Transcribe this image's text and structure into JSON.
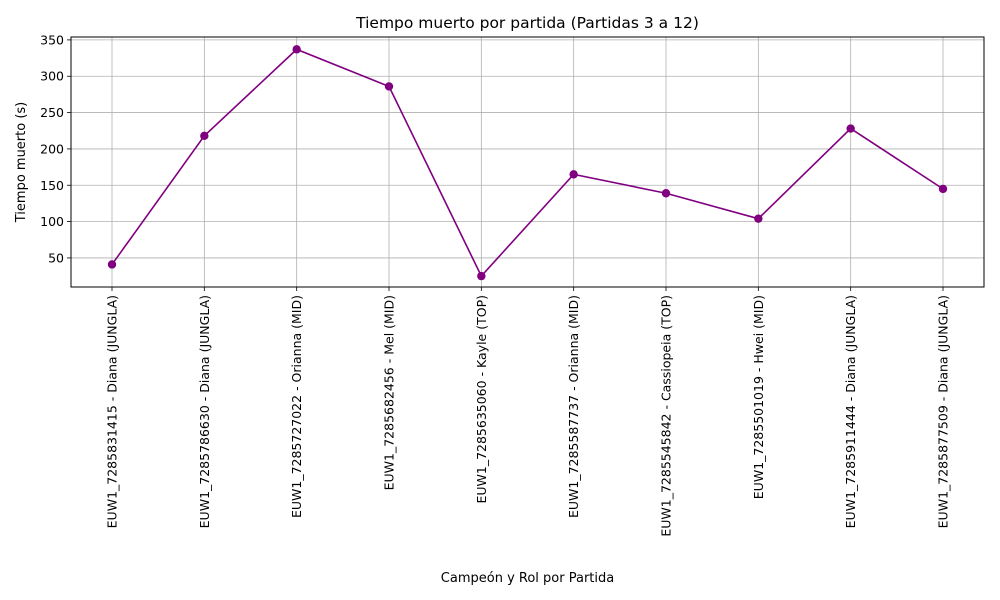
{
  "chart_data": {
    "type": "line",
    "title": "Tiempo muerto por partida (Partidas 3 a 12)",
    "xlabel": "Campeón y Rol por Partida",
    "ylabel": "Tiempo muerto (s)",
    "categories": [
      "EUW1_7285831415 - Diana (JUNGLA)",
      "EUW1_7285786630 - Diana (JUNGLA)",
      "EUW1_7285727022 - Orianna (MID)",
      "EUW1_7285682456 - Mel (MID)",
      "EUW1_7285635060 - Kayle (TOP)",
      "EUW1_7285587737 - Orianna (MID)",
      "EUW1_7285545842 - Cassiopeia (TOP)",
      "EUW1_7285501019 - Hwei (MID)",
      "EUW1_7285911444 - Diana (JUNGLA)",
      "EUW1_7285877509 - Diana (JUNGLA)"
    ],
    "values": [
      41,
      218,
      337,
      286,
      25,
      165,
      139,
      104,
      228,
      145
    ],
    "ylim": [
      10,
      354
    ],
    "yticks": [
      50,
      100,
      150,
      200,
      250,
      300,
      350
    ],
    "grid": true,
    "marker": "circle",
    "line_color": "#800080"
  }
}
